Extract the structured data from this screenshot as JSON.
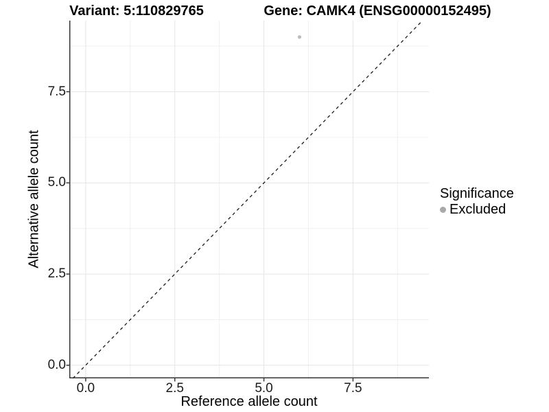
{
  "header": {
    "variant_title": "Variant: 5:110829765",
    "gene_title": "Gene: CAMK4 (ENSG00000152495)"
  },
  "chart_data": {
    "type": "scatter",
    "xlabel": "Reference allele count",
    "ylabel": "Alternative allele count",
    "xlim": [
      -0.46,
      9.63
    ],
    "ylim": [
      -0.36,
      9.45
    ],
    "x_ticks": [
      0,
      2.5,
      5,
      7.5
    ],
    "x_tick_labels": [
      "0.0",
      "2.5",
      "5.0",
      "7.5"
    ],
    "y_ticks": [
      0,
      2.5,
      5,
      7.5
    ],
    "y_tick_labels": [
      "0.0",
      "2.5",
      "5.0",
      "7.5"
    ],
    "x_minor_ticks": [
      1.25,
      3.75,
      6.25,
      8.75
    ],
    "y_minor_ticks": [
      1.25,
      3.75,
      6.25,
      8.75
    ],
    "grid": true,
    "points": [
      {
        "x": 6,
        "y": 9,
        "significance": "Excluded"
      }
    ],
    "reference_line": {
      "type": "identity",
      "slope": 1,
      "intercept": 0,
      "style": "dashed"
    },
    "legend": {
      "title": "Significance",
      "position": "right",
      "entries": [
        {
          "label": "Excluded",
          "color": "#a9a9a9"
        }
      ]
    },
    "colors": {
      "point": "#bdbdbd",
      "legend_key": "#a9a9a9",
      "grid_major": "#e4e4e4",
      "grid_minor": "#f0f0f0",
      "axis_line": "#333333",
      "dashed_line": "#1a1a1a",
      "background": "#ffffff"
    }
  }
}
